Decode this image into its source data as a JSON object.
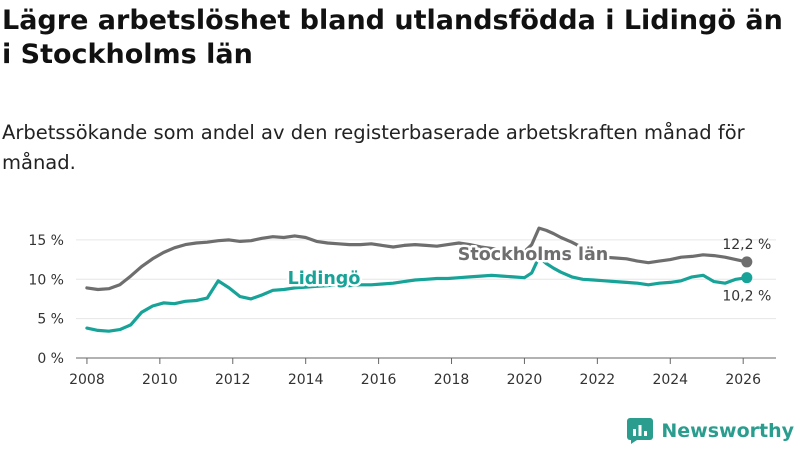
{
  "title": "Lägre arbetslöshet bland utlandsfödda i Lidingö än i Stockholms län",
  "subtitle": "Arbetssökande som andel av den registerbaserade arbetskraften månad för månad.",
  "brand": "Newsworthy",
  "colors": {
    "lidingo": "#17a398",
    "stockholm": "#6e6e6e",
    "brand": "#2a9d8f"
  },
  "chart_data": {
    "type": "line",
    "title": "Lägre arbetslöshet bland utlandsfödda i Lidingö än i Stockholms län",
    "xlabel": "",
    "ylabel": "",
    "xlim": [
      2007.7,
      2026.9
    ],
    "ylim": [
      0,
      16
    ],
    "x_ticks": [
      2008,
      2010,
      2012,
      2014,
      2016,
      2018,
      2020,
      2022,
      2024,
      2026
    ],
    "y_ticks": [
      0,
      5,
      10,
      15
    ],
    "y_tick_labels": [
      "0 %",
      "5 %",
      "10 %",
      "15 %"
    ],
    "series": [
      {
        "name": "Stockholms län",
        "color": "#6e6e6e",
        "end_label": "12,2 %",
        "x": [
          2008.0,
          2008.3,
          2008.6,
          2008.9,
          2009.2,
          2009.5,
          2009.8,
          2010.1,
          2010.4,
          2010.7,
          2011.0,
          2011.3,
          2011.6,
          2011.9,
          2012.2,
          2012.5,
          2012.8,
          2013.1,
          2013.4,
          2013.7,
          2014.0,
          2014.3,
          2014.6,
          2014.9,
          2015.2,
          2015.5,
          2015.8,
          2016.1,
          2016.4,
          2016.7,
          2017.0,
          2017.3,
          2017.6,
          2017.9,
          2018.2,
          2018.5,
          2018.8,
          2019.1,
          2019.4,
          2019.7,
          2020.0,
          2020.2,
          2020.4,
          2020.6,
          2020.8,
          2021.0,
          2021.3,
          2021.6,
          2021.9,
          2022.2,
          2022.5,
          2022.8,
          2023.1,
          2023.4,
          2023.7,
          2024.0,
          2024.3,
          2024.6,
          2024.9,
          2025.2,
          2025.5,
          2025.8,
          2026.1
        ],
        "y": [
          8.9,
          8.7,
          8.8,
          9.3,
          10.4,
          11.6,
          12.6,
          13.4,
          14.0,
          14.4,
          14.6,
          14.7,
          14.9,
          15.0,
          14.8,
          14.9,
          15.2,
          15.4,
          15.3,
          15.5,
          15.3,
          14.8,
          14.6,
          14.5,
          14.4,
          14.4,
          14.5,
          14.3,
          14.1,
          14.3,
          14.4,
          14.3,
          14.2,
          14.4,
          14.6,
          14.4,
          14.1,
          13.9,
          13.7,
          13.6,
          13.5,
          14.4,
          16.5,
          16.2,
          15.8,
          15.3,
          14.7,
          14.0,
          13.3,
          12.8,
          12.7,
          12.6,
          12.3,
          12.1,
          12.3,
          12.5,
          12.8,
          12.9,
          13.1,
          13.0,
          12.8,
          12.5,
          12.2
        ]
      },
      {
        "name": "Lidingö",
        "color": "#17a398",
        "end_label": "10,2 %",
        "x": [
          2008.0,
          2008.3,
          2008.6,
          2008.9,
          2009.2,
          2009.5,
          2009.8,
          2010.1,
          2010.4,
          2010.7,
          2011.0,
          2011.3,
          2011.6,
          2011.9,
          2012.2,
          2012.5,
          2012.8,
          2013.1,
          2013.4,
          2013.7,
          2014.0,
          2014.3,
          2014.6,
          2014.9,
          2015.2,
          2015.5,
          2015.8,
          2016.1,
          2016.4,
          2016.7,
          2017.0,
          2017.3,
          2017.6,
          2017.9,
          2018.2,
          2018.5,
          2018.8,
          2019.1,
          2019.4,
          2019.7,
          2020.0,
          2020.2,
          2020.4,
          2020.6,
          2020.8,
          2021.0,
          2021.3,
          2021.6,
          2021.9,
          2022.2,
          2022.5,
          2022.8,
          2023.1,
          2023.4,
          2023.7,
          2024.0,
          2024.3,
          2024.6,
          2024.9,
          2025.2,
          2025.5,
          2025.8,
          2026.1
        ],
        "y": [
          3.8,
          3.5,
          3.4,
          3.6,
          4.2,
          5.8,
          6.6,
          7.0,
          6.9,
          7.2,
          7.3,
          7.6,
          9.8,
          8.9,
          7.8,
          7.5,
          8.0,
          8.6,
          8.7,
          8.9,
          9.0,
          9.1,
          9.2,
          9.3,
          9.2,
          9.3,
          9.3,
          9.4,
          9.5,
          9.7,
          9.9,
          10.0,
          10.1,
          10.1,
          10.2,
          10.3,
          10.4,
          10.5,
          10.4,
          10.3,
          10.2,
          10.8,
          12.8,
          12.0,
          11.4,
          10.9,
          10.3,
          10.0,
          9.9,
          9.8,
          9.7,
          9.6,
          9.5,
          9.3,
          9.5,
          9.6,
          9.8,
          10.3,
          10.5,
          9.7,
          9.5,
          10.0,
          10.2
        ]
      }
    ]
  }
}
